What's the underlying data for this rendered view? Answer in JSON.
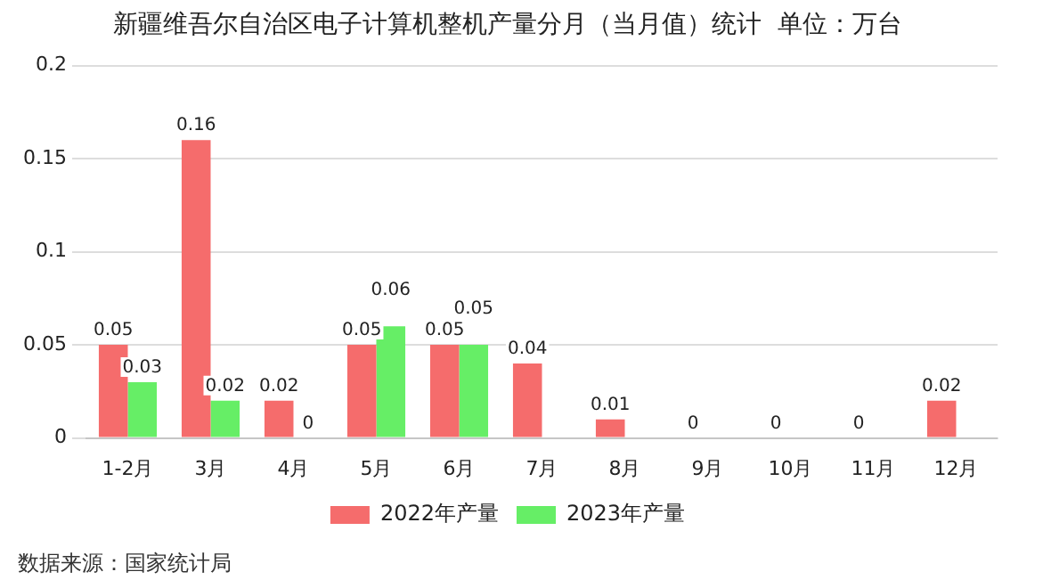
{
  "chart_data": {
    "type": "bar",
    "title": "新疆维吾尔自治区电子计算机整机产量分月（当月值）统计  单位：万台",
    "categories": [
      "1-2月",
      "3月",
      "4月",
      "5月",
      "6月",
      "7月",
      "8月",
      "9月",
      "10月",
      "11月",
      "12月"
    ],
    "series": [
      {
        "name": "2022年产量",
        "color": "#f56c6c",
        "values": [
          0.05,
          0.16,
          0.02,
          0.05,
          0.05,
          0.04,
          0.01,
          0,
          0,
          0,
          0.02
        ]
      },
      {
        "name": "2023年产量",
        "color": "#66ee66",
        "values": [
          0.03,
          0.02,
          0,
          0.06,
          0.05,
          null,
          null,
          null,
          null,
          null,
          null
        ]
      }
    ],
    "ylim": [
      0,
      0.2
    ],
    "yticks": [
      0,
      0.05,
      0.1,
      0.15,
      0.2
    ],
    "grid": "y",
    "legend": "bottom",
    "data_labels": true,
    "annotations": [
      "数据来源：国家统计局"
    ]
  }
}
